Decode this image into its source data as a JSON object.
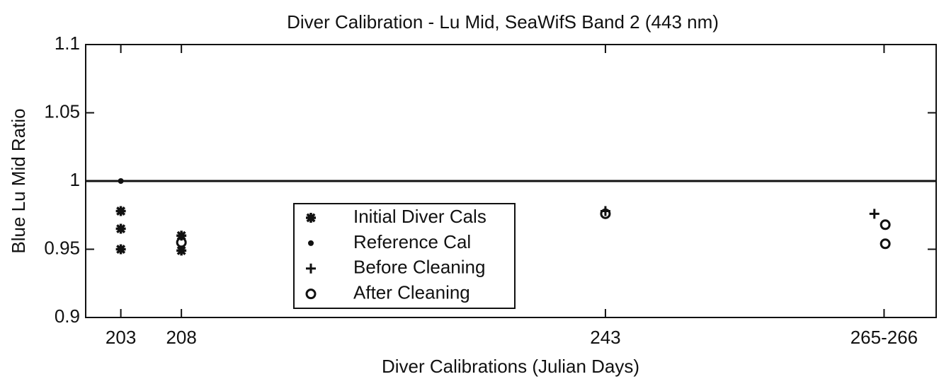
{
  "chart_data": {
    "type": "scatter",
    "title": "Diver Calibration - Lu Mid, SeaWifS Band 2 (443 nm)",
    "xlabel": "Diver Calibrations (Julian Days)",
    "ylabel": "Blue Lu Mid Ratio",
    "xlim": [
      200.1,
      270.3
    ],
    "ylim": [
      0.9,
      1.1
    ],
    "xticks": [
      203,
      208,
      243,
      {
        "value": 266,
        "label": "265-266"
      }
    ],
    "yticks": [
      0.9,
      0.95,
      1,
      1.05,
      1.1
    ],
    "hline": 1,
    "legend": "center",
    "series": [
      {
        "name": "Initial Diver Cals",
        "marker": "asterisk",
        "color": "#111111",
        "x": [
          203,
          203,
          203,
          208,
          208
        ],
        "values": [
          0.978,
          0.965,
          0.95,
          0.96,
          0.949
        ]
      },
      {
        "name": "Reference Cal",
        "marker": "dot",
        "color": "#111111",
        "x": [
          203
        ],
        "values": [
          1
        ]
      },
      {
        "name": "Before Cleaning",
        "marker": "plus",
        "color": "#111111",
        "x": [
          243,
          265.2
        ],
        "values": [
          0.978,
          0.976
        ]
      },
      {
        "name": "After Cleaning",
        "marker": "circle",
        "color": "#111111",
        "x": [
          208,
          243,
          266.1,
          266.1
        ],
        "values": [
          0.955,
          0.976,
          0.968,
          0.954
        ]
      }
    ]
  }
}
